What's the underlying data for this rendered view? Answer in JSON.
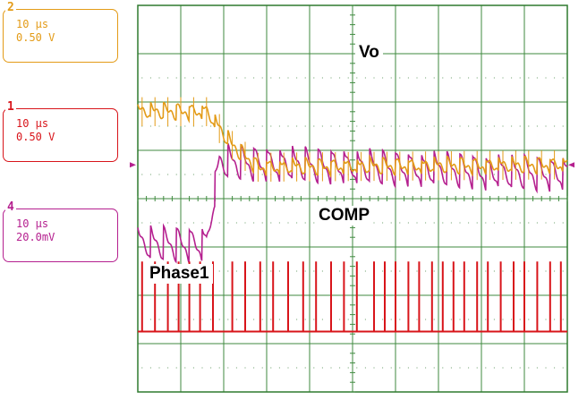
{
  "chart_data": {
    "type": "line",
    "title": "",
    "grid": true,
    "divisions": {
      "x": 10,
      "y": 8
    },
    "channels": [
      {
        "id": "2",
        "time_per_div": "10 µs",
        "volts_per_div": "0.50 V",
        "color": "#e39b17"
      },
      {
        "id": "1",
        "time_per_div": "10 µs",
        "volts_per_div": "0.50 V",
        "color": "#d8141a"
      },
      {
        "id": "4",
        "time_per_div": "10 µs",
        "volts_per_div": "20.0mV",
        "color": "#b5208f"
      }
    ],
    "annotations": [
      "Vo",
      "COMP",
      "Phase1"
    ],
    "series": [
      {
        "name": "Vo",
        "channel": "4",
        "color": "#b5208f",
        "x": [
          0,
          1.6,
          1.9,
          10
        ],
        "y": [
          4.95,
          4.95,
          3.25,
          3.5
        ],
        "ripple_div": 0.35,
        "ripple_period_div": 0.3
      },
      {
        "name": "COMP",
        "channel": "2",
        "color": "#e39b17",
        "x": [
          0,
          1.6,
          2.2,
          2.8,
          10
        ],
        "y": [
          2.2,
          2.2,
          2.9,
          3.35,
          3.3
        ],
        "ripple_div": 0.15,
        "ripple_period_div": 0.3
      },
      {
        "name": "Phase1",
        "channel": "1",
        "color": "#d8141a",
        "baseline_div": 6.75,
        "pulse_height_div": 1.45,
        "pulses_x": [
          0.1,
          0.4,
          0.7,
          0.95,
          1.2,
          1.45,
          1.75,
          2.2,
          2.5,
          2.85,
          3.15,
          3.5,
          3.85,
          4.15,
          4.5,
          4.8,
          5.1,
          5.5,
          5.75,
          6.0,
          6.3,
          6.55,
          6.85,
          7.1,
          7.35,
          7.6,
          7.9,
          8.15,
          8.45,
          8.75,
          9.0,
          9.3,
          9.6,
          9.85
        ]
      }
    ]
  }
}
